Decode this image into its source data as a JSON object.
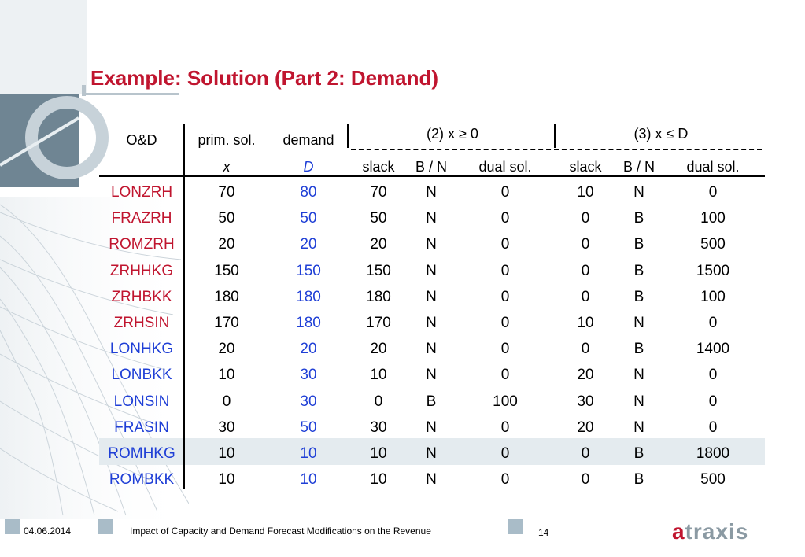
{
  "title": "Example: Solution (Part 2: Demand)",
  "table": {
    "group2_header": "(2)  x ≥ 0",
    "group3_header": "(3)  x ≤ D",
    "col_headers": {
      "od": "O&D",
      "prim_sol": "prim. sol.",
      "demand": "demand",
      "x_sym": "x",
      "d_sym": "D",
      "slack2": "slack",
      "bn2": "B / N",
      "dual2": "dual sol.",
      "slack3": "slack",
      "bn3": "B / N",
      "dual3": "dual sol."
    },
    "rows": [
      {
        "od": "LONZRH",
        "x": "70",
        "D": "80",
        "s2": "70",
        "bn2": "N",
        "d2": "0",
        "s3": "10",
        "bn3": "N",
        "d3": "0"
      },
      {
        "od": "FRAZRH",
        "x": "50",
        "D": "50",
        "s2": "50",
        "bn2": "N",
        "d2": "0",
        "s3": "0",
        "bn3": "B",
        "d3": "100"
      },
      {
        "od": "ROMZRH",
        "x": "20",
        "D": "20",
        "s2": "20",
        "bn2": "N",
        "d2": "0",
        "s3": "0",
        "bn3": "B",
        "d3": "500"
      },
      {
        "od": "ZRHHKG",
        "x": "150",
        "D": "150",
        "s2": "150",
        "bn2": "N",
        "d2": "0",
        "s3": "0",
        "bn3": "B",
        "d3": "1500"
      },
      {
        "od": "ZRHBKK",
        "x": "180",
        "D": "180",
        "s2": "180",
        "bn2": "N",
        "d2": "0",
        "s3": "0",
        "bn3": "B",
        "d3": "100"
      },
      {
        "od": "ZRHSIN",
        "x": "170",
        "D": "180",
        "s2": "170",
        "bn2": "N",
        "d2": "0",
        "s3": "10",
        "bn3": "N",
        "d3": "0"
      },
      {
        "od": "LONHKG",
        "x": "20",
        "D": "20",
        "s2": "20",
        "bn2": "N",
        "d2": "0",
        "s3": "0",
        "bn3": "B",
        "d3": "1400"
      },
      {
        "od": "LONBKK",
        "x": "10",
        "D": "30",
        "s2": "10",
        "bn2": "N",
        "d2": "0",
        "s3": "20",
        "bn3": "N",
        "d3": "0"
      },
      {
        "od": "LONSIN",
        "x": "0",
        "D": "30",
        "s2": "0",
        "bn2": "B",
        "d2": "100",
        "s3": "30",
        "bn3": "N",
        "d3": "0"
      },
      {
        "od": "FRASIN",
        "x": "30",
        "D": "50",
        "s2": "30",
        "bn2": "N",
        "d2": "0",
        "s3": "20",
        "bn3": "N",
        "d3": "0"
      },
      {
        "od": "ROMHKG",
        "x": "10",
        "D": "10",
        "s2": "10",
        "bn2": "N",
        "d2": "0",
        "s3": "0",
        "bn3": "B",
        "d3": "1800"
      },
      {
        "od": "ROMBKK",
        "x": "10",
        "D": "10",
        "s2": "10",
        "bn2": "N",
        "d2": "0",
        "s3": "0",
        "bn3": "B",
        "d3": "500"
      }
    ]
  },
  "footer": {
    "date": "04.06.2014",
    "caption": "Impact of Capacity and Demand Forecast Modifications on the Revenue",
    "page": "14",
    "logo_a": "a",
    "logo_rest": "traxis"
  },
  "colors": {
    "title": "#c0152f",
    "red_od": "#c0152f",
    "blue": "#1f3fd6",
    "highlight_row": "#e4ebef"
  }
}
